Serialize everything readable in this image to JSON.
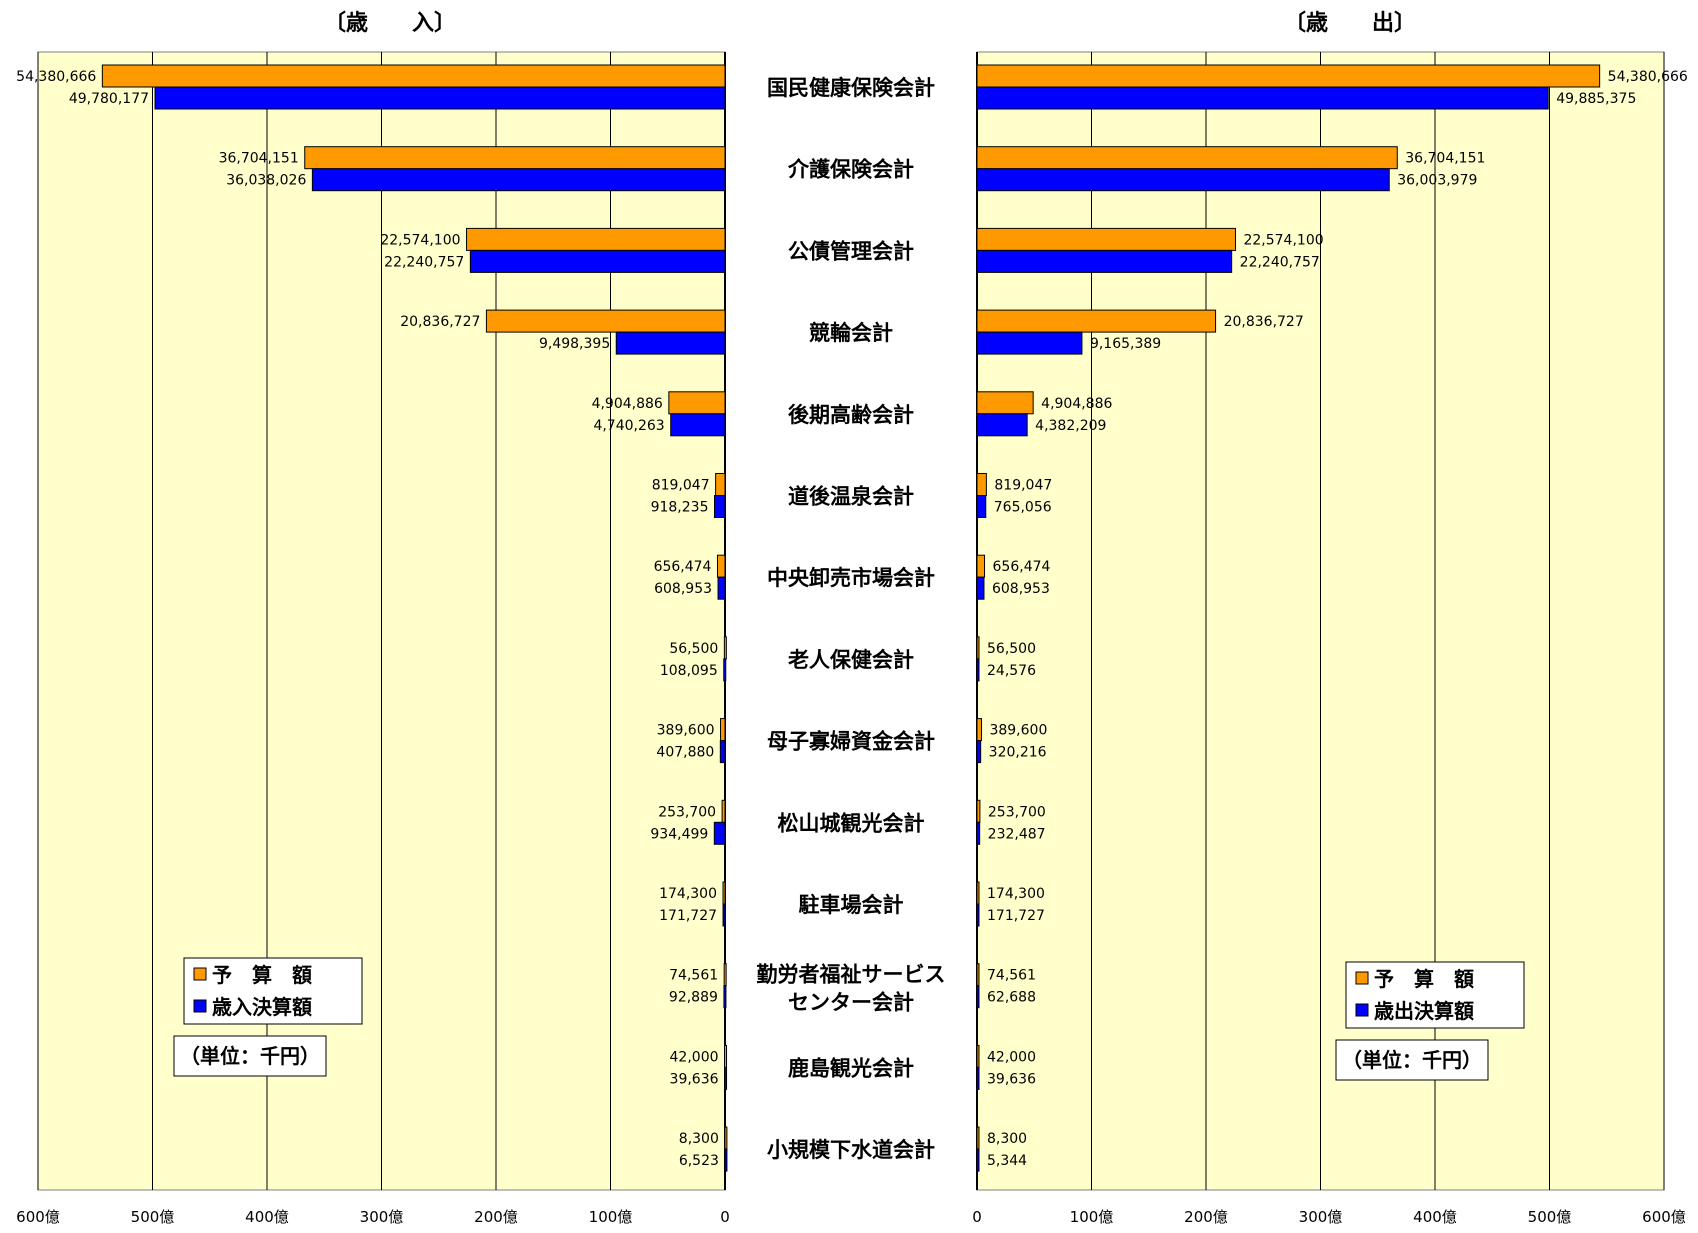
{
  "chart_data": [
    {
      "type": "bar",
      "title": "〔歳　　入〕",
      "orientation": "horizontal-reversed",
      "unit_note": "（単位：千円）",
      "xlim": [
        0,
        60000000
      ],
      "tick_labels": [
        "600億",
        "500億",
        "400億",
        "300億",
        "200億",
        "100億",
        "0"
      ],
      "grid": true,
      "legend_position": "bottom-left",
      "categories": [
        "国民健康保険会計",
        "介護保険会計",
        "公債管理会計",
        "競輪会計",
        "後期高齢会計",
        "道後温泉会計",
        "中央卸売市場会計",
        "老人保健会計",
        "母子寡婦資金会計",
        "松山城観光会計",
        "駐車場会計",
        "勤労者福祉サービスセンター会計",
        "鹿島観光会計",
        "小規模下水道会計"
      ],
      "series": [
        {
          "name": "予　算　額",
          "color": "#FF9900",
          "values": [
            54380666,
            36704151,
            22574100,
            20836727,
            4904886,
            819047,
            656474,
            56500,
            389600,
            253700,
            174300,
            74561,
            42000,
            8300
          ],
          "labels": [
            "54,380,666",
            "36,704,151",
            "22,574,100",
            "20,836,727",
            "4,904,886",
            "819,047",
            "656,474",
            "56,500",
            "389,600",
            "253,700",
            "174,300",
            "74,561",
            "42,000",
            "8,300"
          ]
        },
        {
          "name": "歳入決算額",
          "color": "#0000FF",
          "values": [
            49780177,
            36038026,
            22240757,
            9498395,
            4740263,
            918235,
            608953,
            108095,
            407880,
            934499,
            171727,
            92889,
            39636,
            6523
          ],
          "labels": [
            "49,780,177",
            "36,038,026",
            "22,240,757",
            "9,498,395",
            "4,740,263",
            "918,235",
            "608,953",
            "108,095",
            "407,880",
            "934,499",
            "171,727",
            "92,889",
            "39,636",
            "6,523"
          ]
        }
      ]
    },
    {
      "type": "bar",
      "title": "〔歳　　出〕",
      "orientation": "horizontal",
      "unit_note": "（単位：千円）",
      "xlim": [
        0,
        60000000
      ],
      "tick_labels": [
        "0",
        "100億",
        "200億",
        "300億",
        "400億",
        "500億",
        "600億"
      ],
      "grid": true,
      "legend_position": "bottom-right",
      "categories": [
        "国民健康保険会計",
        "介護保険会計",
        "公債管理会計",
        "競輪会計",
        "後期高齢会計",
        "道後温泉会計",
        "中央卸売市場会計",
        "老人保健会計",
        "母子寡婦資金会計",
        "松山城観光会計",
        "駐車場会計",
        "勤労者福祉サービスセンター会計",
        "鹿島観光会計",
        "小規模下水道会計"
      ],
      "series": [
        {
          "name": "予　算　額",
          "color": "#FF9900",
          "values": [
            54380666,
            36704151,
            22574100,
            20836727,
            4904886,
            819047,
            656474,
            56500,
            389600,
            253700,
            174300,
            74561,
            42000,
            8300
          ],
          "labels": [
            "54,380,666",
            "36,704,151",
            "22,574,100",
            "20,836,727",
            "4,904,886",
            "819,047",
            "656,474",
            "56,500",
            "389,600",
            "253,700",
            "174,300",
            "74,561",
            "42,000",
            "8,300"
          ]
        },
        {
          "name": "歳出決算額",
          "color": "#0000FF",
          "values": [
            49885375,
            36003979,
            22240757,
            9165389,
            4382209,
            765056,
            608953,
            24576,
            320216,
            232487,
            171727,
            62688,
            39636,
            5344
          ],
          "labels": [
            "49,885,375",
            "36,003,979",
            "22,240,757",
            "9,165,389",
            "4,382,209",
            "765,056",
            "608,953",
            "24,576",
            "320,216",
            "232,487",
            "171,727",
            "62,688",
            "39,636",
            "5,344"
          ]
        }
      ]
    }
  ],
  "category_display": [
    [
      "国民健康保険会計"
    ],
    [
      "介護保険会計"
    ],
    [
      "公債管理会計"
    ],
    [
      "競輪会計"
    ],
    [
      "後期高齢会計"
    ],
    [
      "道後温泉会計"
    ],
    [
      "中央卸売市場会計"
    ],
    [
      "老人保健会計"
    ],
    [
      "母子寡婦資金会計"
    ],
    [
      "松山城観光会計"
    ],
    [
      "駐車場会計"
    ],
    [
      "勤労者福祉サービス",
      "センター会計"
    ],
    [
      "鹿島観光会計"
    ],
    [
      "小規模下水道会計"
    ]
  ],
  "colors": {
    "plot_bg": "#FFFFCC",
    "budget": "#FF9900",
    "actual": "#0000FF",
    "grid": "#000000"
  }
}
